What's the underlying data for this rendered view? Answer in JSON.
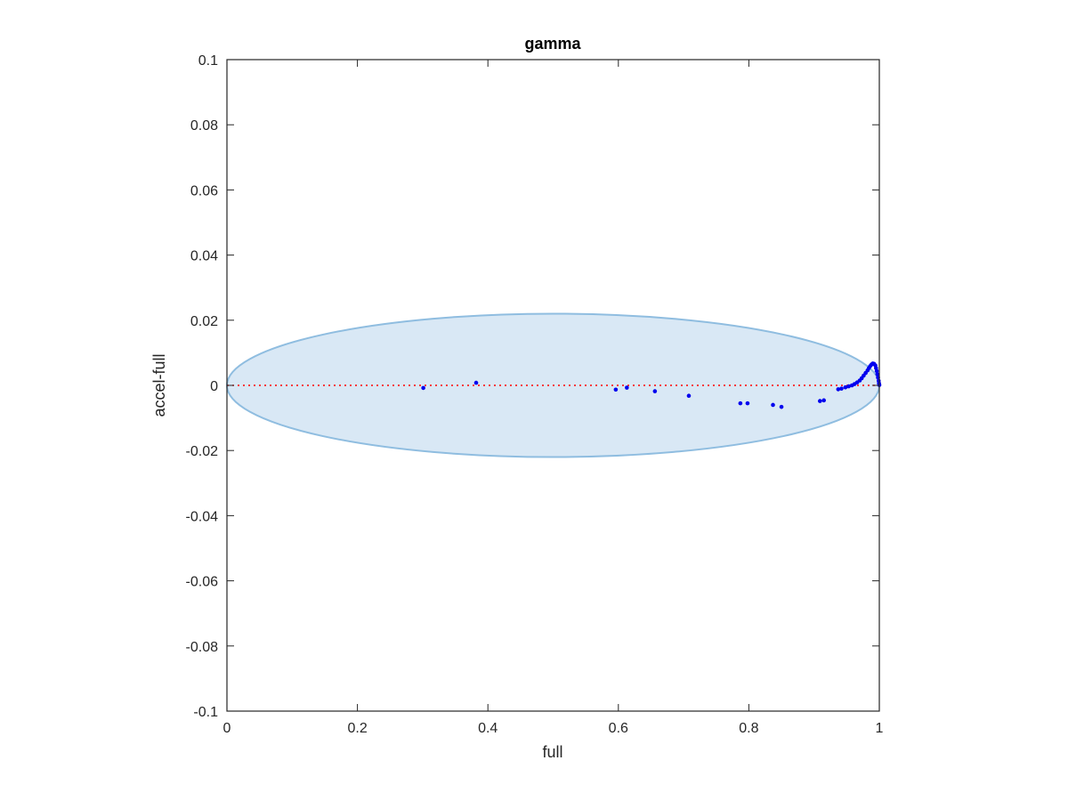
{
  "chart_data": {
    "type": "scatter",
    "title": "gamma",
    "xlabel": "full",
    "ylabel": "accel-full",
    "xlim": [
      0,
      1
    ],
    "ylim": [
      -0.1,
      0.1
    ],
    "xticks": [
      0,
      0.2,
      0.4,
      0.6,
      0.8,
      1
    ],
    "xtick_labels": [
      "0",
      "0.2",
      "0.4",
      "0.6",
      "0.8",
      "1"
    ],
    "yticks": [
      -0.1,
      -0.08,
      -0.06,
      -0.04,
      -0.02,
      0,
      0.02,
      0.04,
      0.06,
      0.08,
      0.1
    ],
    "ytick_labels": [
      "-0.1",
      "-0.08",
      "-0.06",
      "-0.04",
      "-0.02",
      "0",
      "0.02",
      "0.04",
      "0.06",
      "0.08",
      "0.1"
    ],
    "grid": false,
    "reference_line": {
      "y": 0,
      "style": "dotted",
      "color": "#ff0000"
    },
    "ellipse": {
      "cx": 0.5,
      "cy": 0,
      "rx": 0.5,
      "ry": 0.022,
      "fill": "#d9e8f5",
      "stroke": "#8fbde0"
    },
    "series": [
      {
        "color": "#0000ee",
        "points": [
          [
            0.301,
            -0.0008
          ],
          [
            0.382,
            0.0008
          ],
          [
            0.596,
            -0.0013
          ],
          [
            0.613,
            -0.0007
          ],
          [
            0.656,
            -0.0018
          ],
          [
            0.708,
            -0.0032
          ],
          [
            0.787,
            -0.0055
          ],
          [
            0.798,
            -0.0055
          ],
          [
            0.837,
            -0.006
          ],
          [
            0.85,
            -0.0066
          ],
          [
            0.909,
            -0.0048
          ],
          [
            0.915,
            -0.0046
          ],
          [
            0.937,
            -0.0012
          ],
          [
            0.942,
            -0.001
          ],
          [
            0.948,
            -0.0006
          ],
          [
            0.953,
            -0.0003
          ],
          [
            0.958,
            0.0
          ],
          [
            0.962,
            0.0004
          ],
          [
            0.966,
            0.0009
          ],
          [
            0.97,
            0.0015
          ],
          [
            0.973,
            0.0022
          ],
          [
            0.976,
            0.003
          ],
          [
            0.979,
            0.0038
          ],
          [
            0.982,
            0.0046
          ],
          [
            0.984,
            0.0053
          ],
          [
            0.986,
            0.0059
          ],
          [
            0.988,
            0.0064
          ],
          [
            0.99,
            0.0067
          ],
          [
            0.992,
            0.0066
          ],
          [
            0.994,
            0.0061
          ],
          [
            0.995,
            0.0053
          ],
          [
            0.996,
            0.0044
          ],
          [
            0.997,
            0.0034
          ],
          [
            0.998,
            0.0024
          ],
          [
            0.999,
            0.0014
          ],
          [
            0.9995,
            0.0006
          ],
          [
            1.0,
            0.0001
          ]
        ]
      }
    ]
  }
}
